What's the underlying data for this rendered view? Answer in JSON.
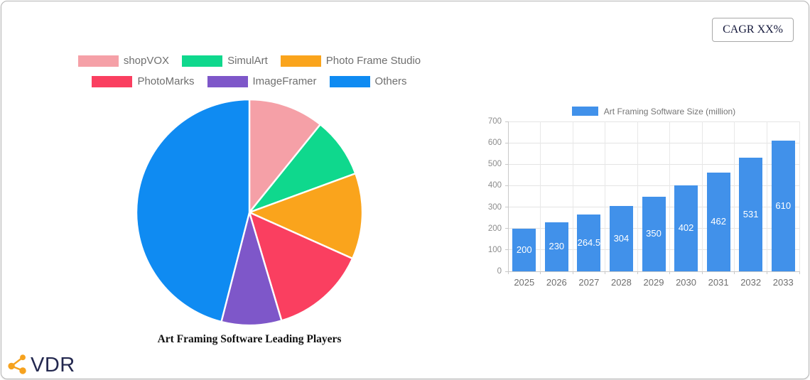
{
  "badge": {
    "label": "CAGR XX%"
  },
  "logo": {
    "text": "VDR",
    "icon_color": "#f6a21e",
    "text_color": "#23284f"
  },
  "chart_data": [
    {
      "type": "pie",
      "title": "Art Framing Software Leading Players",
      "labels": [
        "shopVOX",
        "SimulArt",
        "Photo Frame Studio",
        "PhotoMarks",
        "ImageFramer",
        "Others"
      ],
      "values_pct": [
        10.8,
        8.6,
        12.3,
        13.7,
        8.6,
        46.0
      ],
      "colors": [
        "#f5a0a7",
        "#0fd88d",
        "#faa41c",
        "#fa3f60",
        "#7e57c9",
        "#0f8bf2"
      ],
      "legend_position": "top",
      "legend_items_per_row": 3,
      "start_angle_deg": 0,
      "direction": "clockwise",
      "slice_border_color": "#ffffff"
    },
    {
      "type": "bar",
      "legend": "Art Framing Software Size (million)",
      "categories": [
        "2025",
        "2026",
        "2027",
        "2028",
        "2029",
        "2030",
        "2031",
        "2032",
        "2033"
      ],
      "values": [
        200,
        230,
        264.5,
        304,
        350,
        402,
        462,
        531,
        610
      ],
      "value_labels": [
        "200",
        "230",
        "264.5",
        "304",
        "350",
        "402",
        "462",
        "531",
        "610"
      ],
      "ylim": [
        0,
        700
      ],
      "ytick_step": 100,
      "yticks": [
        "0",
        "100",
        "200",
        "300",
        "400",
        "500",
        "600",
        "700"
      ],
      "bar_color": "#4191ea",
      "value_label_color": "#ffffff",
      "grid": true,
      "legend_position": "top"
    }
  ]
}
